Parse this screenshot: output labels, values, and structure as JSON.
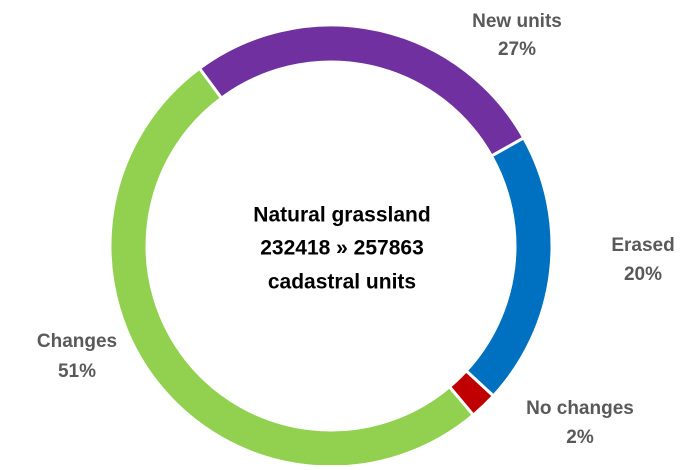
{
  "chart_data": {
    "type": "donut",
    "center_text": [
      "Natural grassland",
      "232418 » 257863",
      "cadastral units"
    ],
    "categories": [
      "New units",
      "Erased",
      "No changes",
      "Changes"
    ],
    "values": [
      27,
      20,
      2,
      51
    ],
    "value_labels": [
      "27%",
      "20%",
      "2%",
      "51%"
    ],
    "colors": [
      "#7030a0",
      "#0070c0",
      "#c00000",
      "#92d050"
    ]
  }
}
